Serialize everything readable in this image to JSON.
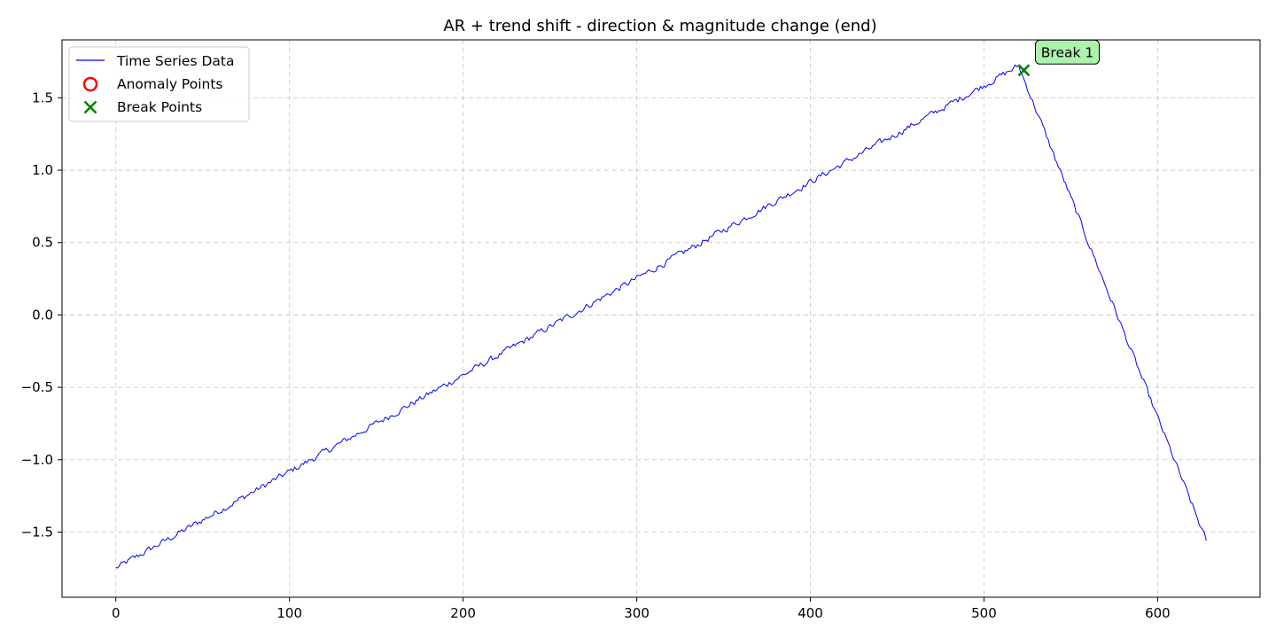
{
  "chart_data": {
    "type": "line",
    "title": "AR + trend shift - direction & magnitude change (end)",
    "xlabel": "",
    "ylabel": "",
    "xlim": [
      -31,
      659
    ],
    "ylim": [
      -1.95,
      1.9
    ],
    "xticks": [
      0,
      100,
      200,
      300,
      400,
      500,
      600
    ],
    "yticks": [
      -1.5,
      -1.0,
      -0.5,
      0.0,
      0.5,
      1.0,
      1.5
    ],
    "xtick_labels": [
      "0",
      "100",
      "200",
      "300",
      "400",
      "500",
      "600"
    ],
    "ytick_labels": [
      "−1.5",
      "−1.0",
      "−0.5",
      "0.0",
      "0.5",
      "1.0",
      "1.5"
    ],
    "grid": true,
    "legend_position": "top-left",
    "legend": [
      {
        "label": "Time Series Data",
        "marker": "line",
        "color": "#0000ff"
      },
      {
        "label": "Anomaly Points",
        "marker": "open-circle",
        "color": "#ff0000"
      },
      {
        "label": "Break Points",
        "marker": "x",
        "color": "#008000"
      }
    ],
    "series": [
      {
        "name": "Time Series Data",
        "color": "#0000ff",
        "segments": [
          {
            "x_start": 0,
            "y_start": -1.75,
            "x_end": 520,
            "y_end": 1.72
          },
          {
            "x_start": 520,
            "y_start": 1.72,
            "x_end": 628,
            "y_end": -1.56
          }
        ],
        "noise_amplitude": 0.02
      }
    ],
    "anomaly_points": [],
    "break_points": [
      {
        "x": 523,
        "y": 1.69,
        "label": "Break 1"
      }
    ]
  }
}
